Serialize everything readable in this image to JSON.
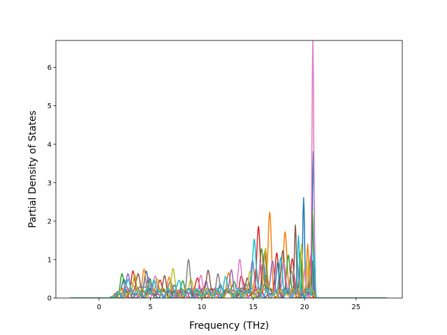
{
  "chart_data": {
    "type": "line",
    "title": "",
    "xlabel": "Frequency (THz)",
    "ylabel": "Partial Density of States",
    "xlim": [
      -4.2,
      29.5
    ],
    "ylim": [
      0,
      6.7
    ],
    "x_ticks": [
      0,
      5,
      10,
      15,
      20,
      25
    ],
    "y_ticks": [
      0,
      1,
      2,
      3,
      4,
      5,
      6
    ],
    "x_tick_labels": [
      "0",
      "5",
      "10",
      "15",
      "20",
      "25"
    ],
    "y_tick_labels": [
      "0",
      "1",
      "2",
      "3",
      "4",
      "5",
      "6"
    ],
    "grid": false,
    "legend": "none",
    "x_range": [
      -2.8,
      28.0
    ],
    "series": [
      {
        "color": "#1f77b4",
        "peaks": [
          [
            2.4,
            0.35
          ],
          [
            4.6,
            0.45
          ],
          [
            7.4,
            0.3
          ],
          [
            11.8,
            0.35
          ],
          [
            16.0,
            0.9
          ],
          [
            17.4,
            0.8
          ],
          [
            19.9,
            2.52
          ],
          [
            20.85,
            3.62
          ]
        ]
      },
      {
        "color": "#ff7f0e",
        "peaks": [
          [
            3.1,
            0.3
          ],
          [
            4.4,
            0.68
          ],
          [
            6.8,
            0.35
          ],
          [
            12.6,
            0.4
          ],
          [
            15.3,
            0.7
          ],
          [
            16.6,
            2.08
          ],
          [
            18.1,
            1.58
          ],
          [
            20.3,
            1.25
          ]
        ]
      },
      {
        "color": "#2ca02c",
        "peaks": [
          [
            2.2,
            0.55
          ],
          [
            5.0,
            0.4
          ],
          [
            8.2,
            0.3
          ],
          [
            13.2,
            0.35
          ],
          [
            15.8,
            1.15
          ],
          [
            18.4,
            1.1
          ],
          [
            19.6,
            1.05
          ],
          [
            20.75,
            2.12
          ]
        ]
      },
      {
        "color": "#d62728",
        "peaks": [
          [
            3.3,
            0.62
          ],
          [
            5.9,
            0.45
          ],
          [
            9.6,
            0.35
          ],
          [
            13.8,
            0.45
          ],
          [
            15.5,
            1.65
          ],
          [
            17.3,
            0.95
          ],
          [
            18.8,
            0.8
          ],
          [
            20.6,
            1.05
          ]
        ]
      },
      {
        "color": "#9467bd",
        "peaks": [
          [
            2.8,
            0.4
          ],
          [
            4.8,
            0.5
          ],
          [
            10.4,
            0.35
          ],
          [
            12.9,
            0.55
          ],
          [
            14.9,
            0.9
          ],
          [
            16.9,
            0.8
          ],
          [
            19.3,
            0.8
          ],
          [
            20.7,
            0.6
          ]
        ]
      },
      {
        "color": "#8c564b",
        "peaks": [
          [
            3.8,
            0.5
          ],
          [
            6.4,
            0.35
          ],
          [
            10.6,
            0.72
          ],
          [
            14.4,
            0.5
          ],
          [
            16.1,
            1.0
          ],
          [
            17.9,
            1.12
          ],
          [
            19.1,
            1.68
          ],
          [
            20.8,
            0.9
          ]
        ]
      },
      {
        "color": "#e377c2",
        "peaks": [
          [
            2.6,
            0.3
          ],
          [
            5.5,
            0.35
          ],
          [
            9.9,
            0.45
          ],
          [
            13.7,
            0.85
          ],
          [
            15.7,
            0.8
          ],
          [
            18.0,
            0.85
          ],
          [
            20.0,
            0.6
          ],
          [
            20.8,
            6.45
          ]
        ]
      },
      {
        "color": "#7f7f7f",
        "peaks": [
          [
            4.1,
            0.3
          ],
          [
            6.9,
            0.3
          ],
          [
            8.7,
            0.9
          ],
          [
            11.6,
            0.4
          ],
          [
            14.2,
            0.35
          ],
          [
            16.3,
            0.6
          ],
          [
            18.7,
            0.6
          ],
          [
            20.5,
            0.5
          ]
        ]
      },
      {
        "color": "#bcbd22",
        "peaks": [
          [
            3.5,
            0.45
          ],
          [
            5.7,
            0.4
          ],
          [
            7.2,
            0.62
          ],
          [
            8.9,
            0.45
          ],
          [
            14.7,
            0.45
          ],
          [
            16.2,
            1.22
          ],
          [
            19.7,
            1.18
          ],
          [
            20.4,
            0.9
          ]
        ]
      },
      {
        "color": "#17becf",
        "peaks": [
          [
            2.9,
            0.35
          ],
          [
            5.3,
            0.35
          ],
          [
            7.8,
            0.35
          ],
          [
            12.3,
            0.4
          ],
          [
            15.1,
            1.47
          ],
          [
            17.7,
            0.9
          ],
          [
            19.4,
            1.48
          ],
          [
            20.9,
            1.15
          ]
        ]
      }
    ]
  }
}
